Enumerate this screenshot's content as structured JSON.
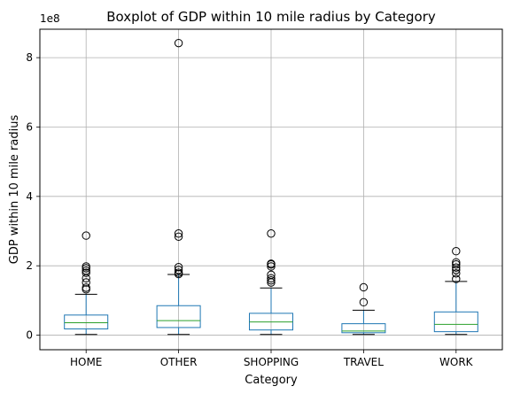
{
  "chart_data": {
    "type": "boxplot",
    "title": "Boxplot of GDP within 10 mile radius by Category",
    "xlabel": "Category",
    "ylabel": "GDP within 10 mile radius",
    "offset_label": "1e8",
    "ylim": [
      -0.42,
      8.82
    ],
    "yticks": [
      0,
      2,
      4,
      6,
      8
    ],
    "ytick_labels": [
      "0",
      "2",
      "4",
      "6",
      "8"
    ],
    "grid": true,
    "categories": [
      "HOME",
      "OTHER",
      "SHOPPING",
      "TRAVEL",
      "WORK"
    ],
    "boxes": [
      {
        "category": "HOME",
        "whisker_low": 0.02,
        "q1": 0.18,
        "median": 0.36,
        "q3": 0.58,
        "whisker_high": 1.18,
        "outliers": [
          1.32,
          1.37,
          1.52,
          1.64,
          1.8,
          1.86,
          1.93,
          1.98,
          2.87
        ]
      },
      {
        "category": "OTHER",
        "whisker_low": 0.02,
        "q1": 0.22,
        "median": 0.42,
        "q3": 0.85,
        "whisker_high": 1.75,
        "outliers": [
          1.76,
          1.8,
          1.88,
          1.96,
          2.84,
          2.93,
          8.42
        ]
      },
      {
        "category": "SHOPPING",
        "whisker_low": 0.02,
        "q1": 0.15,
        "median": 0.38,
        "q3": 0.63,
        "whisker_high": 1.36,
        "outliers": [
          1.52,
          1.58,
          1.64,
          1.74,
          1.98,
          2.04,
          2.06,
          2.93
        ]
      },
      {
        "category": "TRAVEL",
        "whisker_low": 0.02,
        "q1": 0.07,
        "median": 0.12,
        "q3": 0.33,
        "whisker_high": 0.72,
        "outliers": [
          0.95,
          1.38
        ]
      },
      {
        "category": "WORK",
        "whisker_low": 0.02,
        "q1": 0.1,
        "median": 0.31,
        "q3": 0.67,
        "whisker_high": 1.55,
        "outliers": [
          1.62,
          1.78,
          1.88,
          1.95,
          2.04,
          2.1,
          2.42
        ]
      }
    ],
    "colors": {
      "box": "#1f77b4",
      "median": "#2ca02c",
      "whisker_cap": "#000000",
      "grid": "#b0b0b0"
    }
  }
}
